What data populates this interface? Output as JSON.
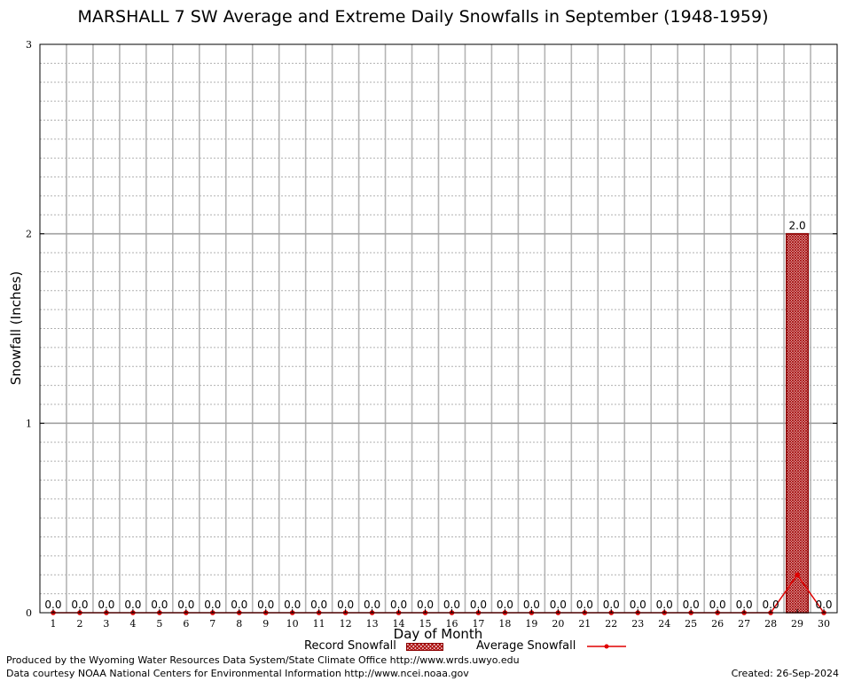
{
  "chart_data": {
    "type": "bar",
    "title": "MARSHALL 7 SW Average and Extreme Daily Snowfalls in September (1948-1959)",
    "xlabel": "Day of Month",
    "ylabel": "Snowfall (Inches)",
    "ylim": [
      0,
      3
    ],
    "yticks": [
      "0",
      "1",
      "2",
      "3"
    ],
    "categories": [
      "1",
      "2",
      "3",
      "4",
      "5",
      "6",
      "7",
      "8",
      "9",
      "10",
      "11",
      "12",
      "13",
      "14",
      "15",
      "16",
      "17",
      "18",
      "19",
      "20",
      "21",
      "22",
      "23",
      "24",
      "25",
      "26",
      "27",
      "28",
      "29",
      "30"
    ],
    "series": [
      {
        "name": "Record Snowfall",
        "type": "bar",
        "color": "#8b0000",
        "values": [
          0,
          0,
          0,
          0,
          0,
          0,
          0,
          0,
          0,
          0,
          0,
          0,
          0,
          0,
          0,
          0,
          0,
          0,
          0,
          0,
          0,
          0,
          0,
          0,
          0,
          0,
          0,
          0,
          2.0,
          0
        ]
      },
      {
        "name": "Average Snowfall",
        "type": "line",
        "color": "#e00000",
        "values": [
          0,
          0,
          0,
          0,
          0,
          0,
          0,
          0,
          0,
          0,
          0,
          0,
          0,
          0,
          0,
          0,
          0,
          0,
          0,
          0,
          0,
          0,
          0,
          0,
          0,
          0,
          0,
          0,
          0.2,
          0
        ]
      }
    ],
    "data_labels": [
      "0.0",
      "0.0",
      "0.0",
      "0.0",
      "0.0",
      "0.0",
      "0.0",
      "0.0",
      "0.0",
      "0.0",
      "0.0",
      "0.0",
      "0.0",
      "0.0",
      "0.0",
      "0.0",
      "0.0",
      "0.0",
      "0.0",
      "0.0",
      "0.0",
      "0.0",
      "0.0",
      "0.0",
      "0.0",
      "0.0",
      "0.0",
      "0.0",
      "2.0",
      "0.0"
    ],
    "grid": true,
    "legend": "bottom-center"
  },
  "footer": {
    "credit_line1": "Produced by the Wyoming Water Resources Data System/State Climate Office http://www.wrds.uwyo.edu",
    "credit_line2": "Data courtesy NOAA National Centers for Environmental Information http://www.ncei.noaa.gov",
    "created": "Created:  26-Sep-2024"
  }
}
